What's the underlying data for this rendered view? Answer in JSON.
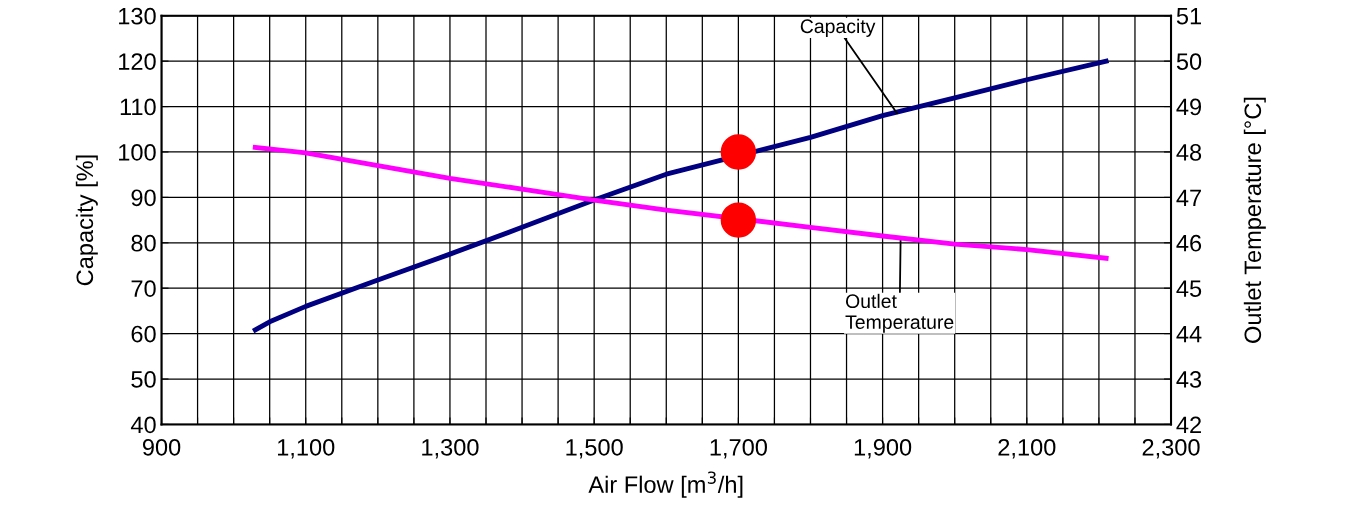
{
  "chart_data": {
    "type": "line",
    "xlabel": "Air Flow [m$^{3}$/h]",
    "ylabel": "Capacity [%]",
    "y2label": "Outlet Temperature [°C]",
    "xlim": [
      900,
      2300
    ],
    "ylim": [
      40,
      130
    ],
    "y2lim": [
      42,
      51
    ],
    "xticks": [
      900,
      {
        "value": 950,
        "label": null
      },
      {
        "value": 1000,
        "label": null
      },
      {
        "value": 1050,
        "label": null
      },
      {
        "value": 1100,
        "label": "1,100"
      },
      {
        "value": 1150,
        "label": null
      },
      {
        "value": 1200,
        "label": null
      },
      {
        "value": 1250,
        "label": null
      },
      {
        "value": 1300,
        "label": "1,300"
      },
      {
        "value": 1350,
        "label": null
      },
      {
        "value": 1400,
        "label": null
      },
      {
        "value": 1450,
        "label": null
      },
      {
        "value": 1500,
        "label": "1,500"
      },
      {
        "value": 1550,
        "label": null
      },
      {
        "value": 1600,
        "label": null
      },
      {
        "value": 1650,
        "label": null
      },
      {
        "value": 1700,
        "label": "1,700"
      },
      {
        "value": 1750,
        "label": null
      },
      {
        "value": 1800,
        "label": null
      },
      {
        "value": 1850,
        "label": null
      },
      {
        "value": 1900,
        "label": "1,900"
      },
      {
        "value": 1950,
        "label": null
      },
      {
        "value": 2000,
        "label": null
      },
      {
        "value": 2050,
        "label": null
      },
      {
        "value": 2100,
        "label": "2,100"
      },
      {
        "value": 2150,
        "label": null
      },
      {
        "value": 2200,
        "label": null
      },
      {
        "value": 2250,
        "label": null
      },
      {
        "value": 2300,
        "label": "2,300"
      }
    ],
    "yticks": [
      40,
      50,
      60,
      70,
      80,
      90,
      100,
      110,
      120,
      130
    ],
    "y2ticks": [
      42,
      43,
      44,
      45,
      46,
      47,
      48,
      49,
      50,
      51
    ],
    "grid": true,
    "legend": false,
    "line_style": "solid",
    "series": [
      {
        "color": "#000080",
        "x": [
          1030,
          1050,
          1100,
          1200,
          1300,
          1400,
          1500,
          1600,
          1800,
          1900,
          2000,
          2100,
          2200,
          2210
        ],
        "values": [
          60.8,
          62.6,
          66,
          71.8,
          77.5,
          83.4,
          89.4,
          95.1,
          103.2,
          108,
          111.9,
          115.9,
          119.6,
          120
        ]
      },
      {
        "color": "#ff00ff",
        "axis": "y2",
        "x": [
          1030,
          1100,
          1200,
          1300,
          1400,
          1500,
          1600,
          1800,
          1900,
          2000,
          2100,
          2210
        ],
        "values": [
          48.1,
          47.98,
          47.7,
          47.42,
          47.18,
          46.94,
          46.72,
          46.34,
          46.15,
          45.97,
          45.85,
          45.66
        ]
      },
      {
        "type": "scatter",
        "marker": "circle",
        "color": "#ff0000",
        "x": [
          1700
        ],
        "values": [
          100
        ]
      },
      {
        "type": "scatter",
        "marker": "circle",
        "color": "#ff0000",
        "axis": "y2",
        "x": [
          1700
        ],
        "values": [
          46.5
        ]
      }
    ],
    "annotations": [
      {
        "text": "Capacity",
        "x": 1920,
        "y": 108.5
      },
      {
        "text": "Outlet\nTemperature",
        "x": 1925,
        "y": 81
      }
    ]
  }
}
